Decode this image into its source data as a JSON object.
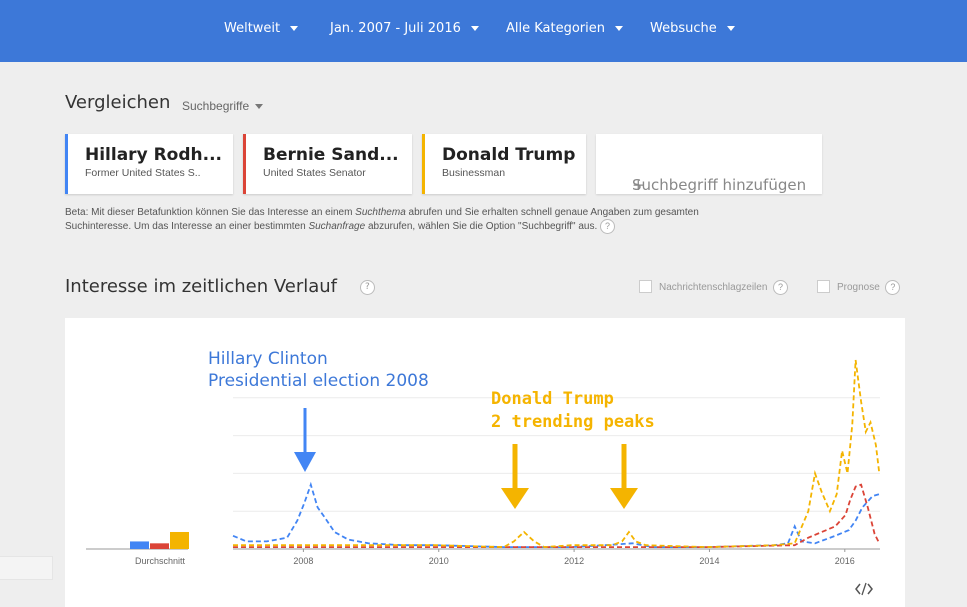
{
  "topbar": {
    "region": "Weltweit",
    "timerange": "Jan. 2007 - Juli 2016",
    "category": "Alle Kategorien",
    "search_type": "Websuche"
  },
  "compare": {
    "heading": "Vergleichen",
    "dropdown": "Suchbegriffe",
    "terms": [
      {
        "title": "Hillary Rodh...",
        "desc": "Former United States S..",
        "color": "#4285f4"
      },
      {
        "title": "Bernie Sand...",
        "desc": "United States Senator",
        "color": "#db4437"
      },
      {
        "title": "Donald Trump",
        "desc": "Businessman",
        "color": "#f4b400"
      }
    ],
    "add_label": "Suchbegriff hinzufügen",
    "add_plus": "+"
  },
  "beta": {
    "part1": "Beta: Mit dieser Betafunktion können Sie das Interesse an einem ",
    "em1": "Suchthema",
    "part2": " abrufen und Sie erhalten schnell genaue Angaben zum gesamten Suchinteresse. Um das Interesse an einer bestimmten ",
    "em2": "Suchanfrage",
    "part3": " abzurufen, wählen Sie die Option \"Suchbegriff\" aus."
  },
  "interest": {
    "heading": "Interesse im zeitlichen Verlauf",
    "news_label": "Nachrichtenschlagzeilen",
    "forecast_label": "Prognose",
    "help": "?"
  },
  "annotations": {
    "clinton_line1": "Hillary Clinton",
    "clinton_line2": "Presidential election 2008",
    "trump_line1": "Donald Trump",
    "trump_line2": "2 trending peaks"
  },
  "chart_data": {
    "type": "line",
    "average_label": "Durchschnitt",
    "x_ticks": [
      "2008",
      "2010",
      "2012",
      "2014",
      "2016"
    ],
    "ylim": [
      0,
      100
    ],
    "series": [
      {
        "name": "Hillary Rodh...",
        "color": "#4285f4",
        "average": 4,
        "points": [
          [
            2007.0,
            7
          ],
          [
            2007.2,
            4
          ],
          [
            2007.5,
            4
          ],
          [
            2007.8,
            6
          ],
          [
            2007.95,
            15
          ],
          [
            2008.05,
            24
          ],
          [
            2008.15,
            34
          ],
          [
            2008.25,
            22
          ],
          [
            2008.35,
            17
          ],
          [
            2008.5,
            9
          ],
          [
            2008.7,
            5
          ],
          [
            2009.0,
            3
          ],
          [
            2009.5,
            2
          ],
          [
            2010.0,
            2
          ],
          [
            2011.0,
            1
          ],
          [
            2012.0,
            1
          ],
          [
            2012.5,
            2
          ],
          [
            2012.9,
            3
          ],
          [
            2013.2,
            1
          ],
          [
            2014.0,
            1
          ],
          [
            2015.0,
            2
          ],
          [
            2015.2,
            3
          ],
          [
            2015.3,
            12
          ],
          [
            2015.4,
            4
          ],
          [
            2015.6,
            3
          ],
          [
            2015.9,
            7
          ],
          [
            2016.1,
            10
          ],
          [
            2016.2,
            15
          ],
          [
            2016.3,
            22
          ],
          [
            2016.45,
            28
          ],
          [
            2016.55,
            29
          ]
        ]
      },
      {
        "name": "Bernie Sand...",
        "color": "#db4437",
        "average": 3,
        "points": [
          [
            2007.0,
            1
          ],
          [
            2010.0,
            1
          ],
          [
            2014.0,
            1
          ],
          [
            2015.3,
            2
          ],
          [
            2015.5,
            6
          ],
          [
            2015.7,
            9
          ],
          [
            2015.9,
            12
          ],
          [
            2016.05,
            18
          ],
          [
            2016.12,
            26
          ],
          [
            2016.2,
            33
          ],
          [
            2016.28,
            34
          ],
          [
            2016.38,
            22
          ],
          [
            2016.48,
            8
          ],
          [
            2016.55,
            3
          ]
        ]
      },
      {
        "name": "Donald Trump",
        "color": "#f4b400",
        "average": 9,
        "points": [
          [
            2007.0,
            2
          ],
          [
            2008.0,
            2
          ],
          [
            2009.0,
            2
          ],
          [
            2010.0,
            2
          ],
          [
            2011.0,
            1
          ],
          [
            2011.15,
            4
          ],
          [
            2011.3,
            9
          ],
          [
            2011.45,
            4
          ],
          [
            2011.6,
            1
          ],
          [
            2012.0,
            2
          ],
          [
            2012.6,
            2
          ],
          [
            2012.75,
            4
          ],
          [
            2012.85,
            9
          ],
          [
            2012.95,
            4
          ],
          [
            2013.1,
            2
          ],
          [
            2014.0,
            1
          ],
          [
            2015.0,
            2
          ],
          [
            2015.3,
            3
          ],
          [
            2015.5,
            20
          ],
          [
            2015.6,
            40
          ],
          [
            2015.7,
            30
          ],
          [
            2015.82,
            20
          ],
          [
            2015.92,
            29
          ],
          [
            2016.0,
            52
          ],
          [
            2016.08,
            40
          ],
          [
            2016.15,
            66
          ],
          [
            2016.2,
            100
          ],
          [
            2016.28,
            78
          ],
          [
            2016.35,
            62
          ],
          [
            2016.42,
            67
          ],
          [
            2016.5,
            55
          ],
          [
            2016.55,
            40
          ]
        ]
      }
    ]
  }
}
